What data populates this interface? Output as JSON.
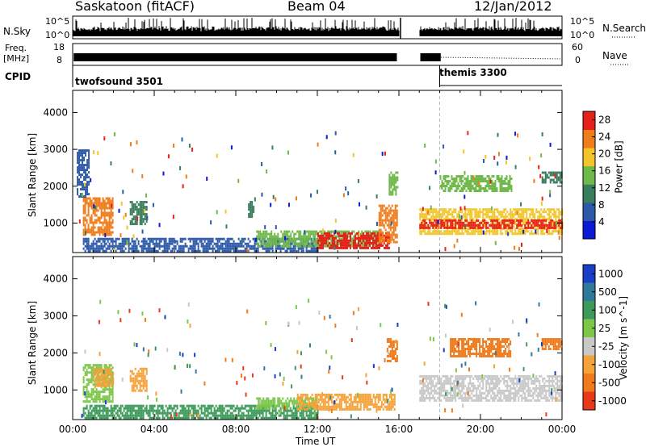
{
  "header": {
    "station": "Saskatoon (fitACF)",
    "beam": "Beam 04",
    "date": "12/Jan/2012"
  },
  "left_labels": {
    "nsky": "N.Sky",
    "freq": "Freq.",
    "mhz": "[MHz]",
    "cpid": "CPID"
  },
  "right_labels": {
    "nsearch": "N.Search",
    "nave": "Nave"
  },
  "noise_axis": {
    "top": "10^5",
    "bottom": "10^0"
  },
  "freq_axis": {
    "ticks": [
      "18",
      "8"
    ]
  },
  "nave_axis": {
    "ticks": [
      "60",
      "0"
    ]
  },
  "cpid": {
    "modes": [
      {
        "name": "twofsound 3501",
        "start_hour": 0
      },
      {
        "name": "themis 3300",
        "start_hour": 18
      }
    ]
  },
  "chart_data": [
    {
      "type": "heatmap",
      "title": "",
      "xlabel": "Time UT",
      "ylabel": "Slant Range [km]",
      "xlim": [
        0,
        24
      ],
      "ylim": [
        200,
        4600
      ],
      "x_ticks": [
        "00:00",
        "04:00",
        "08:00",
        "12:00",
        "16:00",
        "20:00",
        "00:00"
      ],
      "y_ticks": [
        1000,
        2000,
        3000,
        4000
      ],
      "colorbar": {
        "label": "Power [dB]",
        "ticks": [
          4,
          8,
          12,
          16,
          20,
          24,
          28
        ],
        "range": [
          0,
          30
        ],
        "colors": [
          "#0a1ad6",
          "#2d5aa8",
          "#3a7d5c",
          "#6fb84a",
          "#f2c52a",
          "#f07d1c",
          "#e8201a"
        ]
      },
      "data_gap_hours": [
        16.0,
        17.0
      ],
      "echo_regions": [
        {
          "t_start": 0.5,
          "t_end": 2.0,
          "range_low": 700,
          "range_high": 1700,
          "level": 22
        },
        {
          "t_start": 0.2,
          "t_end": 0.8,
          "range_low": 1700,
          "range_high": 3000,
          "level": 8
        },
        {
          "t_start": 2.8,
          "t_end": 3.6,
          "range_low": 1000,
          "range_high": 1600,
          "level": 12
        },
        {
          "t_start": 8.6,
          "t_end": 8.9,
          "range_low": 1200,
          "range_high": 1600,
          "level": 12
        },
        {
          "t_start": 0.5,
          "t_end": 12.0,
          "range_low": 250,
          "range_high": 600,
          "level": 6
        },
        {
          "t_start": 9.0,
          "t_end": 15.0,
          "range_low": 400,
          "range_high": 800,
          "level": 14
        },
        {
          "t_start": 12.0,
          "t_end": 15.5,
          "range_low": 350,
          "range_high": 750,
          "level": 28
        },
        {
          "t_start": 15.0,
          "t_end": 15.9,
          "range_low": 500,
          "range_high": 1500,
          "level": 24
        },
        {
          "t_start": 15.5,
          "t_end": 15.9,
          "range_low": 1800,
          "range_high": 2400,
          "level": 16
        },
        {
          "t_start": 17.0,
          "t_end": 24.0,
          "range_low": 700,
          "range_high": 1400,
          "level": 18
        },
        {
          "t_start": 17.0,
          "t_end": 24.0,
          "range_low": 900,
          "range_high": 1100,
          "level": 26
        },
        {
          "t_start": 18.0,
          "t_end": 21.5,
          "range_low": 1900,
          "range_high": 2300,
          "level": 14
        },
        {
          "t_start": 23.0,
          "t_end": 24.0,
          "range_low": 2100,
          "range_high": 2400,
          "level": 10
        }
      ]
    },
    {
      "type": "heatmap",
      "title": "",
      "xlabel": "Time UT",
      "ylabel": "Slant Range [km]",
      "xlim": [
        0,
        24
      ],
      "ylim": [
        200,
        4600
      ],
      "x_ticks": [
        "00:00",
        "04:00",
        "08:00",
        "12:00",
        "16:00",
        "20:00",
        "00:00"
      ],
      "y_ticks": [
        1000,
        2000,
        3000,
        4000
      ],
      "colorbar": {
        "label": "Velocity [m s^-1]",
        "ticks": [
          "1000",
          "500",
          "100",
          "25",
          "-25",
          "-100",
          "-500",
          "-1000"
        ],
        "colors": [
          "#1a3ec8",
          "#2f7a9a",
          "#3d9a5a",
          "#7cc74a",
          "#c8c8c8",
          "#f4a23a",
          "#f07a1c",
          "#e83a1a"
        ]
      },
      "data_gap_hours": [
        16.0,
        17.0
      ],
      "echo_regions": [
        {
          "t_start": 0.5,
          "t_end": 2.0,
          "range_low": 700,
          "range_high": 1700,
          "level": "25"
        },
        {
          "t_start": 1.0,
          "t_end": 2.0,
          "range_low": 1100,
          "range_high": 1600,
          "level": "-100"
        },
        {
          "t_start": 2.8,
          "t_end": 3.6,
          "range_low": 1000,
          "range_high": 1600,
          "level": "-100"
        },
        {
          "t_start": 0.5,
          "t_end": 12.0,
          "range_low": 250,
          "range_high": 600,
          "level": "100"
        },
        {
          "t_start": 9.0,
          "t_end": 12.0,
          "range_low": 500,
          "range_high": 800,
          "level": "25"
        },
        {
          "t_start": 11.0,
          "t_end": 15.8,
          "range_low": 450,
          "range_high": 900,
          "level": "-100"
        },
        {
          "t_start": 15.4,
          "t_end": 15.9,
          "range_low": 1800,
          "range_high": 2400,
          "level": "-500"
        },
        {
          "t_start": 17.0,
          "t_end": 24.0,
          "range_low": 700,
          "range_high": 1400,
          "level": "-25"
        },
        {
          "t_start": 18.5,
          "t_end": 21.5,
          "range_low": 1900,
          "range_high": 2400,
          "level": "-500"
        },
        {
          "t_start": 23.0,
          "t_end": 24.0,
          "range_low": 2100,
          "range_high": 2400,
          "level": "-500"
        }
      ]
    }
  ]
}
